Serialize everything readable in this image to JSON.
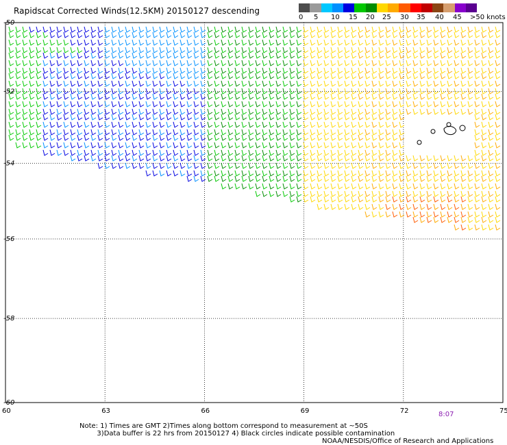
{
  "title": "Rapidscat Corrected Winds(12.5KM) 20150127 descending",
  "colorbar": {
    "labels": [
      "0",
      "5",
      "10",
      "15",
      "20",
      "25",
      "30",
      "35",
      "40",
      "45",
      ">50 knots"
    ],
    "colors": [
      "#4d4d4d",
      "#9a9a9a",
      "#00c8ff",
      "#0090ff",
      "#0000e0",
      "#00c800",
      "#008c00",
      "#ffd800",
      "#ffaa00",
      "#ff5a00",
      "#ff0000",
      "#c00000",
      "#8b4513",
      "#d69e6e",
      "#8800cc",
      "#5a0090"
    ]
  },
  "map": {
    "lat_labels": [
      "-50",
      "-52",
      "-54",
      "-56",
      "-58",
      "-60"
    ],
    "lon_labels": [
      "60",
      "63",
      "66",
      "69",
      "72",
      "75"
    ],
    "lon_range": [
      60,
      75
    ],
    "lat_range": [
      -60,
      -50
    ]
  },
  "timestamp": "8:07",
  "notes": "Note: 1) Times are GMT 2)Times along bottom correspond to measurement at ~50S\n        3)Data buffer is 22 hrs from 20150127 4) Black circles indicate possible contamination",
  "credit": "NOAA/NESDIS/Office of Research and Applications"
}
